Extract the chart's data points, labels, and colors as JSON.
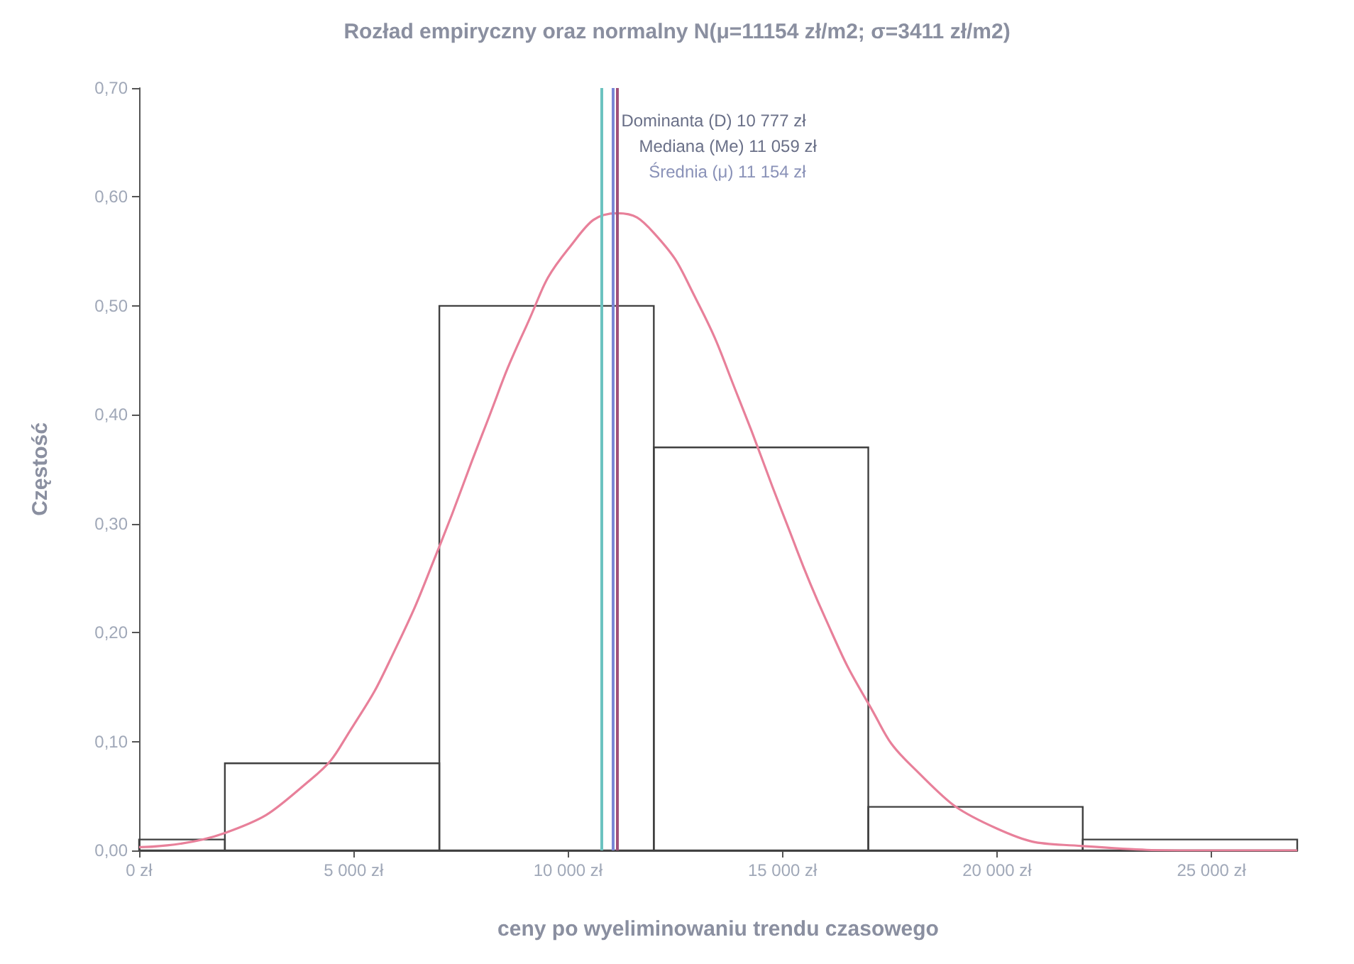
{
  "chart_data": {
    "type": "histogram",
    "title": "Rozład empiryczny oraz normalny N(μ=11154 zł/m2; σ=3411 zł/m2)",
    "xlabel": "ceny po wyeliminowaniu trendu czasowego",
    "ylabel": "Częstość",
    "bins": [
      0,
      2000,
      7000,
      12000,
      17000,
      22000,
      27000
    ],
    "values": [
      0.01,
      0.08,
      0.5,
      0.37,
      0.04,
      0.01
    ],
    "color": "#404040",
    "series": [
      {
        "type": "line",
        "color": "#e8809a",
        "x": [
          0,
          2000,
          4000,
          5000,
          6000,
          7000,
          8000,
          9000,
          10000,
          11154,
          12000,
          13000,
          14000,
          15000,
          16000,
          17000,
          18000,
          20000,
          22000,
          25000,
          27000
        ],
        "values": [
          0.003,
          0.016,
          0.065,
          0.115,
          0.187,
          0.279,
          0.382,
          0.479,
          0.552,
          0.585,
          0.567,
          0.505,
          0.413,
          0.31,
          0.213,
          0.135,
          0.078,
          0.02,
          0.004,
          0.0,
          0.0
        ]
      }
    ],
    "ref_lines": [
      {
        "axis": "x",
        "value": 10777,
        "label": "Dominanta (D) 10 777 zł",
        "color": "#6cc3c0"
      },
      {
        "axis": "x",
        "value": 11059,
        "label": "Mediana (Me) 11 059 zł",
        "color": "#7a86d6"
      },
      {
        "axis": "x",
        "value": 11154,
        "label": "Średnia (μ) 11 154 zł",
        "color": "#a0507a"
      }
    ],
    "xlim": [
      0,
      27000
    ],
    "xticks": [
      {
        "value": 0,
        "label": "0 zł"
      },
      {
        "value": 5000,
        "label": "5 000 zł"
      },
      {
        "value": 10000,
        "label": "10 000 zł"
      },
      {
        "value": 15000,
        "label": "15 000 zł"
      },
      {
        "value": 20000,
        "label": "20 000 zł"
      },
      {
        "value": 25000,
        "label": "25 000 zł"
      }
    ],
    "ylim": [
      0,
      0.7
    ],
    "yticks": [
      {
        "value": 0,
        "label": "0,00"
      },
      {
        "value": 0.1,
        "label": "0,10"
      },
      {
        "value": 0.2,
        "label": "0,20"
      },
      {
        "value": 0.3,
        "label": "0,30"
      },
      {
        "value": 0.4,
        "label": "0,40"
      },
      {
        "value": 0.5,
        "label": "0,50"
      },
      {
        "value": 0.6,
        "label": "0,60"
      },
      {
        "value": 0.7,
        "label": "0,70"
      }
    ],
    "grid": false,
    "marker": "none"
  }
}
